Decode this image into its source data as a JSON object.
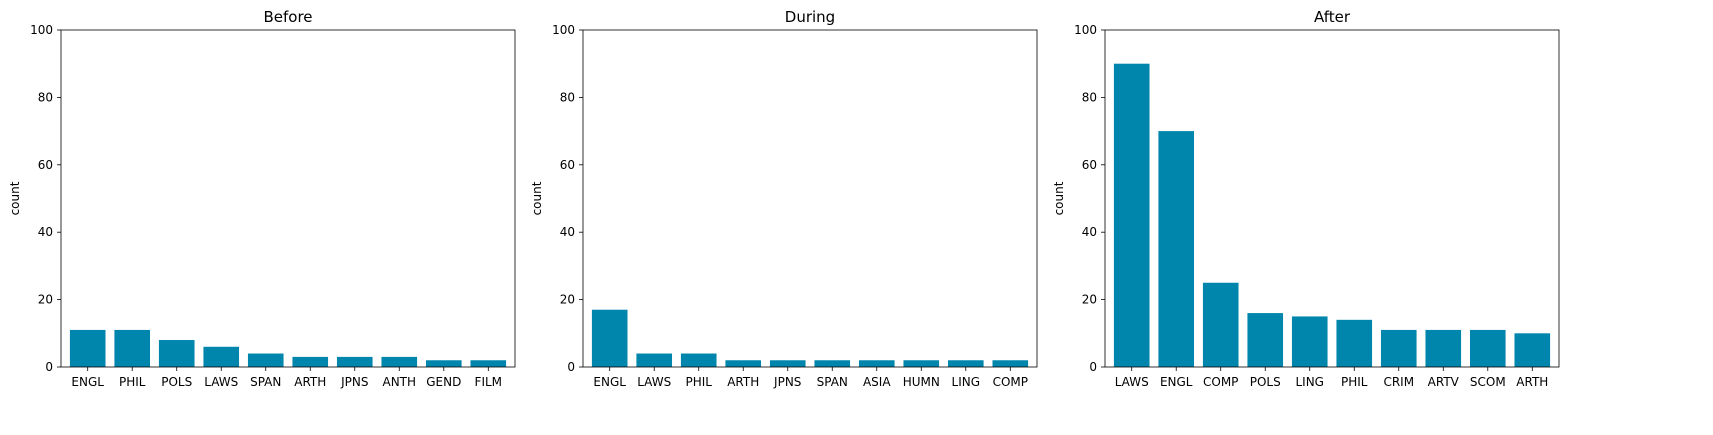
{
  "chart_data": [
    {
      "type": "bar",
      "title": "Before",
      "xlabel": "",
      "ylabel": "count",
      "ylim": [
        0,
        100
      ],
      "yticks": [
        0,
        20,
        40,
        60,
        80,
        100
      ],
      "grid": false,
      "bar_color": "#0086ad",
      "categories": [
        "ENGL",
        "PHIL",
        "POLS",
        "LAWS",
        "SPAN",
        "ARTH",
        "JPNS",
        "ANTH",
        "GEND",
        "FILM"
      ],
      "values": [
        11,
        11,
        8,
        6,
        4,
        3,
        3,
        3,
        2,
        2
      ]
    },
    {
      "type": "bar",
      "title": "During",
      "xlabel": "",
      "ylabel": "count",
      "ylim": [
        0,
        100
      ],
      "yticks": [
        0,
        20,
        40,
        60,
        80,
        100
      ],
      "grid": false,
      "bar_color": "#0086ad",
      "categories": [
        "ENGL",
        "LAWS",
        "PHIL",
        "ARTH",
        "JPNS",
        "SPAN",
        "ASIA",
        "HUMN",
        "LING",
        "COMP"
      ],
      "values": [
        17,
        4,
        4,
        2,
        2,
        2,
        2,
        2,
        2,
        2
      ]
    },
    {
      "type": "bar",
      "title": "After",
      "xlabel": "",
      "ylabel": "count",
      "ylim": [
        0,
        100
      ],
      "yticks": [
        0,
        20,
        40,
        60,
        80,
        100
      ],
      "grid": false,
      "bar_color": "#0086ad",
      "categories": [
        "LAWS",
        "ENGL",
        "COMP",
        "POLS",
        "LING",
        "PHIL",
        "CRIM",
        "ARTV",
        "SCOM",
        "ARTH"
      ],
      "values": [
        90,
        70,
        25,
        16,
        15,
        14,
        11,
        11,
        11,
        10
      ]
    }
  ]
}
